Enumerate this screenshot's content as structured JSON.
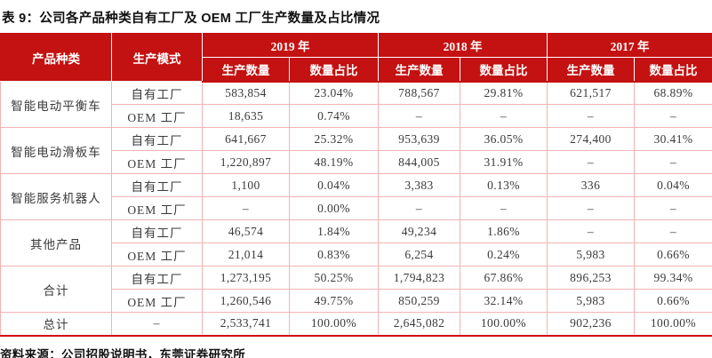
{
  "title": "表 9：公司各产品种类自有工厂及 OEM 工厂生产数量及占比情况",
  "source": "资料来源：公司招股说明书，东莞证券研究所",
  "colors": {
    "header_bg": "#C41111",
    "header_text": "#FFFFFF",
    "grid_line": "#F2B3B3",
    "bottom_rule": "#D40A0A",
    "body_text": "#3A3A3A"
  },
  "table": {
    "col1_header": "产品种类",
    "col2_header": "生产模式",
    "year_groups": [
      "2019 年",
      "2018 年",
      "2017 年"
    ],
    "sub_quantity": "生产数量",
    "sub_share": "数量占比",
    "groups": [
      {
        "product": "智能电动平衡车",
        "rows": [
          {
            "mode": "自有工厂",
            "cells": [
              "583,854",
              "23.04%",
              "788,567",
              "29.81%",
              "621,517",
              "68.89%"
            ]
          },
          {
            "mode": "OEM 工厂",
            "cells": [
              "18,635",
              "0.74%",
              "–",
              "–",
              "–",
              "–"
            ]
          }
        ]
      },
      {
        "product": "智能电动滑板车",
        "rows": [
          {
            "mode": "自有工厂",
            "cells": [
              "641,667",
              "25.32%",
              "953,639",
              "36.05%",
              "274,400",
              "30.41%"
            ]
          },
          {
            "mode": "OEM 工厂",
            "cells": [
              "1,220,897",
              "48.19%",
              "844,005",
              "31.91%",
              "–",
              "–"
            ]
          }
        ]
      },
      {
        "product": "智能服务机器人",
        "rows": [
          {
            "mode": "自有工厂",
            "cells": [
              "1,100",
              "0.04%",
              "3,383",
              "0.13%",
              "336",
              "0.04%"
            ]
          },
          {
            "mode": "OEM 工厂",
            "cells": [
              "–",
              "0.00%",
              "–",
              "–",
              "–",
              "–"
            ]
          }
        ]
      },
      {
        "product": "其他产品",
        "rows": [
          {
            "mode": "自有工厂",
            "cells": [
              "46,574",
              "1.84%",
              "49,234",
              "1.86%",
              "–",
              "–"
            ]
          },
          {
            "mode": "OEM 工厂",
            "cells": [
              "21,014",
              "0.83%",
              "6,254",
              "0.24%",
              "5,983",
              "0.66%"
            ]
          }
        ]
      },
      {
        "product": "合计",
        "rows": [
          {
            "mode": "自有工厂",
            "cells": [
              "1,273,195",
              "50.25%",
              "1,794,823",
              "67.86%",
              "896,253",
              "99.34%"
            ]
          },
          {
            "mode": "OEM 工厂",
            "cells": [
              "1,260,546",
              "49.75%",
              "850,259",
              "32.14%",
              "5,983",
              "0.66%"
            ]
          }
        ]
      }
    ],
    "total": {
      "product": "总计",
      "mode": "–",
      "cells": [
        "2,533,741",
        "100.00%",
        "2,645,082",
        "100.00%",
        "902,236",
        "100.00%"
      ]
    }
  }
}
